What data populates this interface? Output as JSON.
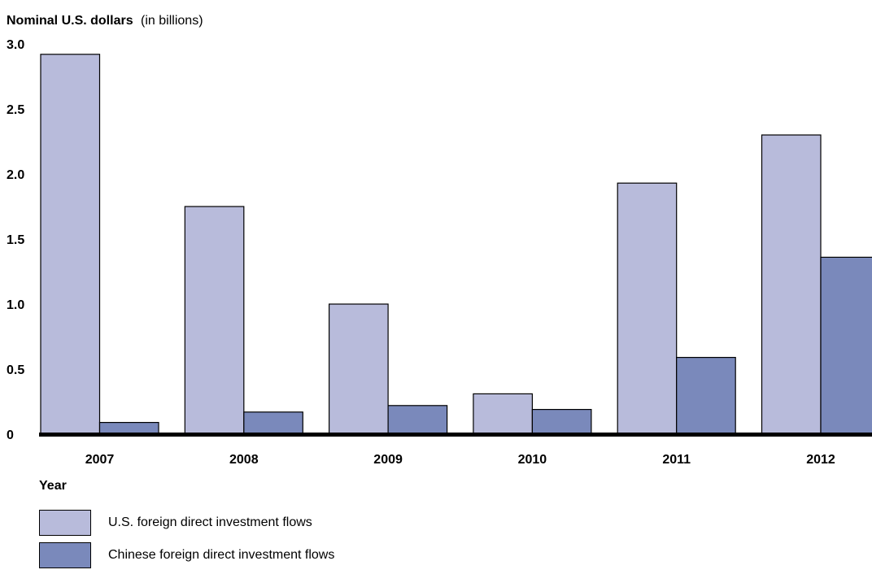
{
  "chart_data": {
    "type": "bar",
    "title": "Nominal U.S. dollars",
    "title_suffix": "(in billions)",
    "xlabel": "Year",
    "categories": [
      "2007",
      "2008",
      "2009",
      "2010",
      "2011",
      "2012"
    ],
    "series": [
      {
        "name": "U.S. foreign direct investment flows",
        "color": "#b8bbdb",
        "values": [
          2.92,
          1.75,
          1.0,
          0.31,
          1.93,
          2.3
        ]
      },
      {
        "name": "Chinese foreign direct investment flows",
        "color": "#7a89bb",
        "values": [
          0.09,
          0.17,
          0.22,
          0.19,
          0.59,
          1.36
        ]
      }
    ],
    "ylim": [
      0,
      3.0
    ],
    "yticks": [
      "0",
      "0.5",
      "1.0",
      "1.5",
      "2.0",
      "2.5",
      "3.0"
    ],
    "grid": false,
    "legend_position": "bottom-left"
  }
}
